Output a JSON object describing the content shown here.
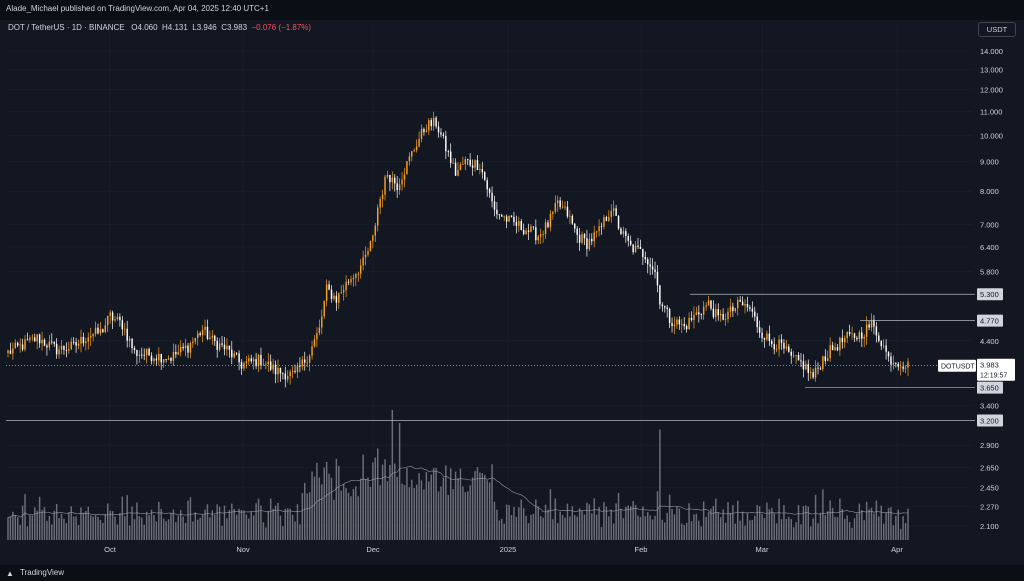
{
  "publish_line": "Alade_Michael published on TradingView.com, Apr 04, 2025 12:40 UTC+1",
  "header": {
    "symbol": "DOT / TetherUS · 1D · BINANCE",
    "o_label": "O",
    "o": "4.060",
    "h_label": "H",
    "h": "4.131",
    "l_label": "L",
    "l": "3.946",
    "c_label": "C",
    "c": "3.983",
    "change": "−0.076 (−1.87%)"
  },
  "currency": "USDT",
  "brand": "TradingView",
  "brand_icon": "tradingview-logo-icon",
  "colors": {
    "up": "#f7a021",
    "down": "#ffffff",
    "bg": "#131722",
    "grid": "#1c2030",
    "volume": "#8a8d96"
  },
  "chart_data": {
    "type": "candlestick",
    "symbol": "DOTUSDT",
    "y_scale": "log",
    "ylim": [
      2.05,
      14.4
    ],
    "y_ticks": [
      "14.000",
      "13.000",
      "12.000",
      "11.000",
      "10.000",
      "9.000",
      "8.000",
      "7.000",
      "6.400",
      "5.800",
      "5.300",
      "4.770",
      "4.400",
      "3.983",
      "3.650",
      "3.400",
      "3.200",
      "2.900",
      "2.650",
      "2.450",
      "2.270",
      "2.100"
    ],
    "x_labels": [
      "Oct",
      "Nov",
      "Dec",
      "2025",
      "Feb",
      "Mar",
      "Apr"
    ],
    "price_labels": [
      {
        "label": "5.300",
        "value": 5.3,
        "style": "line"
      },
      {
        "label": "4.770",
        "value": 4.77,
        "style": "line"
      },
      {
        "label": "3.650",
        "value": 3.65,
        "style": "line"
      },
      {
        "label": "3.200",
        "value": 3.2,
        "style": "line"
      }
    ],
    "last_price": {
      "symbol": "DOTUSDT",
      "value": "3.983",
      "countdown": "12:19:57"
    },
    "anchors": [
      [
        0,
        4.2
      ],
      [
        5,
        4.3
      ],
      [
        12,
        4.45
      ],
      [
        20,
        4.25
      ],
      [
        27,
        4.3
      ],
      [
        33,
        4.5
      ],
      [
        38,
        4.55
      ],
      [
        42,
        4.85
      ],
      [
        47,
        4.7
      ],
      [
        52,
        4.2
      ],
      [
        60,
        4.15
      ],
      [
        67,
        4.12
      ],
      [
        74,
        4.3
      ],
      [
        80,
        4.6
      ],
      [
        84,
        4.4
      ],
      [
        90,
        4.25
      ],
      [
        96,
        4.0
      ],
      [
        104,
        4.08
      ],
      [
        110,
        3.9
      ],
      [
        118,
        3.83
      ],
      [
        124,
        4.2
      ],
      [
        128,
        4.6
      ],
      [
        131,
        5.4
      ],
      [
        135,
        5.2
      ],
      [
        140,
        5.6
      ],
      [
        146,
        6.0
      ],
      [
        150,
        6.6
      ],
      [
        152,
        7.5
      ],
      [
        156,
        8.6
      ],
      [
        160,
        8.2
      ],
      [
        164,
        8.9
      ],
      [
        168,
        9.7
      ],
      [
        172,
        10.4
      ],
      [
        176,
        10.5
      ],
      [
        180,
        9.5
      ],
      [
        184,
        8.6
      ],
      [
        188,
        9.0
      ],
      [
        194,
        8.9
      ],
      [
        200,
        7.4
      ],
      [
        206,
        7.1
      ],
      [
        212,
        6.9
      ],
      [
        218,
        6.7
      ],
      [
        222,
        7.0
      ],
      [
        226,
        7.6
      ],
      [
        230,
        7.3
      ],
      [
        234,
        6.7
      ],
      [
        238,
        6.5
      ],
      [
        243,
        6.8
      ],
      [
        248,
        7.5
      ],
      [
        252,
        6.8
      ],
      [
        256,
        6.4
      ],
      [
        262,
        6.2
      ],
      [
        266,
        5.8
      ],
      [
        268,
        5.2
      ],
      [
        272,
        4.8
      ],
      [
        278,
        4.65
      ],
      [
        283,
        4.9
      ],
      [
        288,
        5.1
      ],
      [
        292,
        4.8
      ],
      [
        296,
        4.9
      ],
      [
        301,
        5.1
      ],
      [
        305,
        5.0
      ],
      [
        309,
        4.6
      ],
      [
        313,
        4.4
      ],
      [
        318,
        4.3
      ],
      [
        322,
        4.1
      ],
      [
        327,
        4.0
      ],
      [
        331,
        3.8
      ],
      [
        335,
        4.1
      ],
      [
        340,
        4.3
      ],
      [
        345,
        4.45
      ],
      [
        350,
        4.5
      ],
      [
        355,
        4.7
      ],
      [
        359,
        4.4
      ],
      [
        362,
        4.1
      ],
      [
        366,
        4.05
      ],
      [
        370,
        3.98
      ]
    ],
    "candle_count": 371,
    "volume_scale": "relative (no axis printed)"
  }
}
